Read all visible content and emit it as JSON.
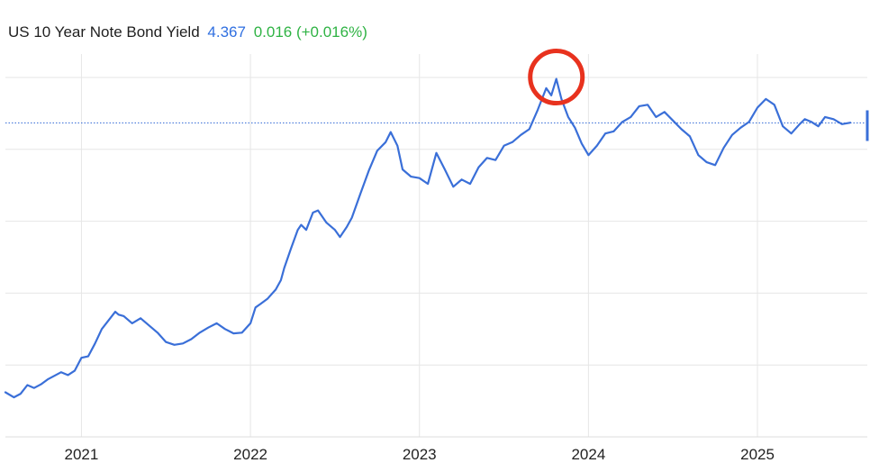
{
  "header": {
    "title": "US 10 Year Note Bond Yield",
    "value": "4.367",
    "change": "0.016 (+0.016%)"
  },
  "colors": {
    "line": "#3a6fd8",
    "change_positive": "#2fb344",
    "highlight_circle": "#e8321e",
    "grid": "#e6e6e6"
  },
  "chart_data": {
    "type": "line",
    "title": "US 10 Year Note Bond Yield",
    "xlabel": "",
    "ylabel": "",
    "x_tick_labels": [
      "2021",
      "2022",
      "2023",
      "2024",
      "2025"
    ],
    "x_range": [
      2020.55,
      2025.65
    ],
    "y_range": [
      0.0,
      5.2
    ],
    "grid": true,
    "current_value_line": 4.367,
    "highlight": {
      "x": 2023.81,
      "y": 4.98,
      "shape": "circle"
    },
    "series": [
      {
        "x": [
          2020.55,
          2020.6,
          2020.64,
          2020.68,
          2020.72,
          2020.76,
          2020.8,
          2020.84,
          2020.88,
          2020.92,
          2020.96,
          2021.0,
          2021.04,
          2021.08,
          2021.12,
          2021.16,
          2021.2,
          2021.22,
          2021.25,
          2021.3,
          2021.35,
          2021.4,
          2021.45,
          2021.5,
          2021.55,
          2021.6,
          2021.65,
          2021.7,
          2021.75,
          2021.8,
          2021.85,
          2021.9,
          2021.95,
          2022.0,
          2022.03,
          2022.06,
          2022.1,
          2022.15,
          2022.18,
          2022.2,
          2022.24,
          2022.28,
          2022.3,
          2022.33,
          2022.37,
          2022.4,
          2022.45,
          2022.5,
          2022.53,
          2022.57,
          2022.6,
          2022.65,
          2022.7,
          2022.75,
          2022.8,
          2022.83,
          2022.87,
          2022.9,
          2022.95,
          2023.0,
          2023.05,
          2023.1,
          2023.15,
          2023.2,
          2023.25,
          2023.3,
          2023.35,
          2023.4,
          2023.45,
          2023.5,
          2023.55,
          2023.6,
          2023.65,
          2023.7,
          2023.75,
          2023.78,
          2023.81,
          2023.84,
          2023.88,
          2023.92,
          2023.96,
          2024.0,
          2024.05,
          2024.1,
          2024.15,
          2024.2,
          2024.25,
          2024.3,
          2024.35,
          2024.4,
          2024.45,
          2024.5,
          2024.55,
          2024.6,
          2024.65,
          2024.7,
          2024.75,
          2024.8,
          2024.85,
          2024.9,
          2024.95,
          2025.0,
          2025.05,
          2025.1,
          2025.15,
          2025.2,
          2025.25,
          2025.28,
          2025.32,
          2025.36,
          2025.4,
          2025.45,
          2025.5,
          2025.55
        ],
        "values": [
          0.62,
          0.55,
          0.6,
          0.72,
          0.68,
          0.73,
          0.8,
          0.85,
          0.9,
          0.86,
          0.92,
          1.1,
          1.12,
          1.3,
          1.5,
          1.62,
          1.74,
          1.7,
          1.68,
          1.58,
          1.65,
          1.55,
          1.45,
          1.32,
          1.28,
          1.3,
          1.36,
          1.45,
          1.52,
          1.58,
          1.5,
          1.44,
          1.45,
          1.58,
          1.8,
          1.85,
          1.92,
          2.05,
          2.18,
          2.35,
          2.62,
          2.88,
          2.95,
          2.88,
          3.12,
          3.15,
          2.98,
          2.88,
          2.78,
          2.92,
          3.05,
          3.38,
          3.7,
          3.98,
          4.1,
          4.24,
          4.05,
          3.72,
          3.62,
          3.6,
          3.52,
          3.95,
          3.72,
          3.48,
          3.58,
          3.52,
          3.75,
          3.88,
          3.85,
          4.05,
          4.1,
          4.2,
          4.28,
          4.55,
          4.85,
          4.75,
          4.98,
          4.7,
          4.45,
          4.3,
          4.08,
          3.92,
          4.05,
          4.22,
          4.25,
          4.38,
          4.45,
          4.6,
          4.62,
          4.45,
          4.52,
          4.4,
          4.28,
          4.18,
          3.92,
          3.82,
          3.78,
          4.02,
          4.2,
          4.3,
          4.38,
          4.58,
          4.7,
          4.62,
          4.32,
          4.22,
          4.35,
          4.42,
          4.38,
          4.32,
          4.45,
          4.42,
          4.35,
          4.37
        ]
      }
    ]
  }
}
